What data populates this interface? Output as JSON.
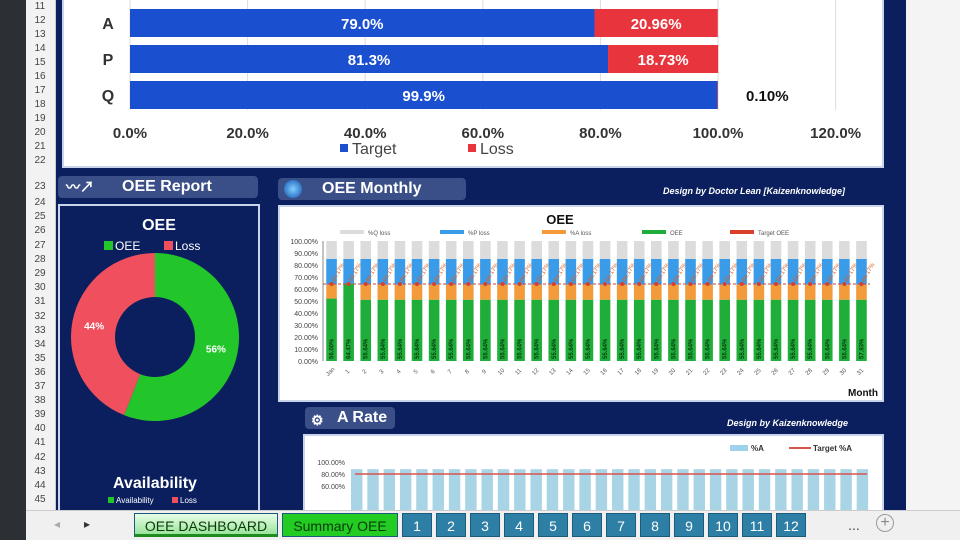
{
  "row_numbers": [
    "11",
    "12",
    "13",
    "14",
    "15",
    "16",
    "17",
    "18",
    "19",
    "20",
    "21",
    "22",
    "23",
    "24",
    "25",
    "26",
    "27",
    "28",
    "29",
    "30",
    "31",
    "32",
    "33",
    "34",
    "35",
    "36",
    "37",
    "38",
    "39",
    "40",
    "41",
    "42",
    "43",
    "44",
    "45"
  ],
  "apq_chart": {
    "type": "bar",
    "orientation": "horizontal",
    "stacked": true,
    "categories": [
      "A",
      "P",
      "Q"
    ],
    "series": [
      {
        "name": "Target",
        "values": [
          79.0,
          81.3,
          99.9
        ],
        "labels": [
          "79.0%",
          "81.3%",
          "99.9%"
        ],
        "color": "#1a4fd0"
      },
      {
        "name": "Loss",
        "values": [
          20.96,
          18.73,
          0.1
        ],
        "labels": [
          "20.96%",
          "18.73%",
          "0.10%"
        ],
        "color": "#e8343c"
      }
    ],
    "xticks": [
      "0.0%",
      "20.0%",
      "40.0%",
      "60.0%",
      "80.0%",
      "100.0%",
      "120.0%"
    ],
    "xlim": [
      0,
      120
    ],
    "legend": "bottom"
  },
  "headers": {
    "oee_report": "OEE Report",
    "oee_monthly": "OEE Monthly",
    "a_rate": "A Rate"
  },
  "design_by_1": "Design by  Doctor Lean [Kaizenknowledge]",
  "design_by_2": "Design by  Kaizenknowledge",
  "oee_donut": {
    "type": "pie",
    "title": "OEE",
    "legend": [
      "OEE",
      "Loss"
    ],
    "values": [
      56,
      44
    ],
    "labels": [
      "56%",
      "44%"
    ],
    "colors": [
      "#22c52a",
      "#f0505e"
    ]
  },
  "availability": {
    "title": "Availability",
    "legend": [
      "Availability",
      "Loss"
    ]
  },
  "chart_data": {
    "type": "bar",
    "stacked": true,
    "title": "OEE",
    "xlabel": "Month",
    "categories": [
      "Jan",
      "1",
      "2",
      "3",
      "4",
      "5",
      "6",
      "7",
      "8",
      "9",
      "10",
      "11",
      "12",
      "13",
      "14",
      "15",
      "16",
      "17",
      "18",
      "19",
      "20",
      "21",
      "22",
      "23",
      "24",
      "25",
      "26",
      "27",
      "28",
      "29",
      "30",
      "31"
    ],
    "yticks": [
      "0.00%",
      "10.00%",
      "20.00%",
      "30.00%",
      "40.00%",
      "50.00%",
      "60.00%",
      "70.00%",
      "80.00%",
      "90.00%",
      "100.00%"
    ],
    "ylim": [
      0,
      100
    ],
    "oee_labels": [
      "56.00%",
      "64.47%",
      "55.64%",
      "55.64%",
      "55.64%",
      "55.64%",
      "55.64%",
      "55.64%",
      "55.64%",
      "55.64%",
      "55.64%",
      "55.64%",
      "55.64%",
      "55.64%",
      "55.64%",
      "55.64%",
      "55.64%",
      "55.64%",
      "55.64%",
      "55.64%",
      "55.64%",
      "55.64%",
      "55.64%",
      "55.64%",
      "55.64%",
      "55.64%",
      "55.64%",
      "55.64%",
      "55.64%",
      "55.64%",
      "55.64%",
      "57.93%"
    ],
    "legend": [
      "%Q loss",
      "%P loss",
      "%A loss",
      "OEE",
      "Target OEE"
    ],
    "colors": {
      "q_loss": "#dcdcdc",
      "p_loss": "#3a9be8",
      "a_loss": "#f39a3a",
      "oee": "#1fae3a",
      "target": "#d9402a"
    },
    "target_oee": 64.17,
    "target_label": "64.17%",
    "a_loss_level": 63.5,
    "p_loss_level": 85
  },
  "a_rate_chart": {
    "type": "bar",
    "legend": [
      "%A",
      "Target %A"
    ],
    "yticks": [
      "100.00%",
      "80.00%",
      "60.00%"
    ],
    "target": 80,
    "value": 88
  },
  "tabs": [
    "OEE DASHBOARD",
    "Summary OEE",
    "1",
    "2",
    "3",
    "4",
    "5",
    "6",
    "7",
    "8",
    "9",
    "10",
    "11",
    "12",
    "..."
  ]
}
